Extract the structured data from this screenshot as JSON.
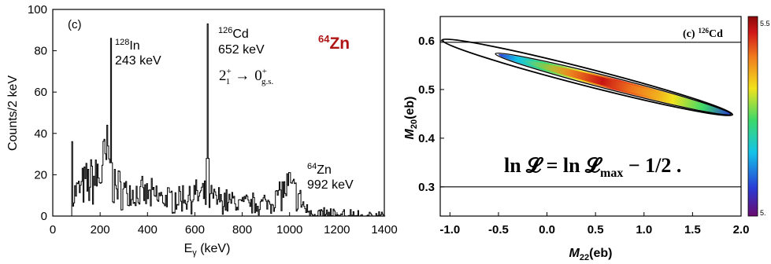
{
  "colors": {
    "axis": "#000000",
    "spectrum": "#000000",
    "zn_label": "#b01515",
    "contour": "#000000",
    "colorbar_stops": [
      "#6a0a6e",
      "#2a3bd6",
      "#14c4e8",
      "#3cd96a",
      "#f2e21d",
      "#f07a1d",
      "#d11818",
      "#8b0a0a"
    ]
  },
  "chart_data": [
    {
      "type": "line",
      "panel_label": "(c)",
      "xlabel": "Eγ (keV)",
      "xlabel_main": "E",
      "xlabel_sub": "γ",
      "xlabel_unit": " (keV)",
      "ylabel": "Counts/2 keV",
      "xlim": [
        0,
        1400
      ],
      "ylim": [
        0,
        100
      ],
      "xticks": [
        "0",
        "200",
        "400",
        "600",
        "800",
        "1000",
        "1200",
        "1400"
      ],
      "yticks": [
        "0",
        "20",
        "40",
        "60",
        "80",
        "100"
      ],
      "grid": false,
      "peaks": [
        {
          "x": 243,
          "y": 86
        },
        {
          "x": 652,
          "y": 93
        }
      ],
      "background_envelope": [
        {
          "x": 80,
          "y": 10
        },
        {
          "x": 150,
          "y": 16
        },
        {
          "x": 200,
          "y": 20
        },
        {
          "x": 230,
          "y": 28
        },
        {
          "x": 260,
          "y": 14
        },
        {
          "x": 320,
          "y": 11
        },
        {
          "x": 400,
          "y": 10
        },
        {
          "x": 500,
          "y": 8
        },
        {
          "x": 600,
          "y": 10
        },
        {
          "x": 700,
          "y": 8
        },
        {
          "x": 800,
          "y": 6
        },
        {
          "x": 900,
          "y": 6
        },
        {
          "x": 950,
          "y": 10
        },
        {
          "x": 1000,
          "y": 14
        },
        {
          "x": 1040,
          "y": 8
        },
        {
          "x": 1080,
          "y": 2
        },
        {
          "x": 1200,
          "y": 1
        },
        {
          "x": 1400,
          "y": 0
        }
      ],
      "annotations": {
        "in_peak": {
          "nucleus_mass": "128",
          "nucleus_symbol": "In",
          "energy": "243 keV"
        },
        "cd_peak": {
          "nucleus_mass": "126",
          "nucleus_symbol": "Cd",
          "energy": "652 keV"
        },
        "transition": {
          "initial": "2",
          "initial_sub": "1",
          "initial_sup": "+",
          "arrow": "→",
          "final": "0",
          "final_sub": "g.s.",
          "final_sup": "+"
        },
        "zn_title": {
          "mass": "64",
          "symbol": "Zn"
        },
        "zn_peak": {
          "nucleus_mass": "64",
          "nucleus_symbol": "Zn",
          "energy": "992 keV"
        }
      }
    },
    {
      "type": "heatmap",
      "panel_label": "(c)",
      "panel_nucleus_mass": "126",
      "panel_nucleus_symbol": "Cd",
      "xlabel": "M22(eb)",
      "xlabel_main": "M",
      "xlabel_sub": "22",
      "xlabel_unit": "(eb)",
      "ylabel": "M20(eb)",
      "ylabel_main": "M",
      "ylabel_sub": "20",
      "ylabel_unit": "(eb)",
      "xlim": [
        -1.1,
        2.0
      ],
      "ylim": [
        0.24,
        0.65
      ],
      "xticks": [
        "-1.0",
        "-0.5",
        "0.0",
        "0.5",
        "1.0",
        "1.5",
        "2.0"
      ],
      "xtick_values": [
        -1.0,
        -0.5,
        0.0,
        0.5,
        1.0,
        1.5,
        2.0
      ],
      "yticks": [
        "0.3",
        "0.4",
        "0.5",
        "0.6"
      ],
      "ytick_values": [
        0.3,
        0.4,
        0.5,
        0.6
      ],
      "horizontal_lines": [
        0.3,
        0.597
      ],
      "likelihood_region": {
        "start": {
          "x": -1.05,
          "y": 0.6
        },
        "end": {
          "x": 1.88,
          "y": 0.45
        },
        "peak": {
          "x": 0.25,
          "y": 0.52
        }
      },
      "equation": "ln 𝓛 = ln 𝓛max − 1/2 .",
      "equation_parts": {
        "lhs": "ln 𝓛 = ln 𝓛",
        "sub": "max",
        "rhs": " − 1/2 ."
      },
      "colorbar": {
        "max_label": "5.5",
        "min_label": "5."
      }
    }
  ]
}
